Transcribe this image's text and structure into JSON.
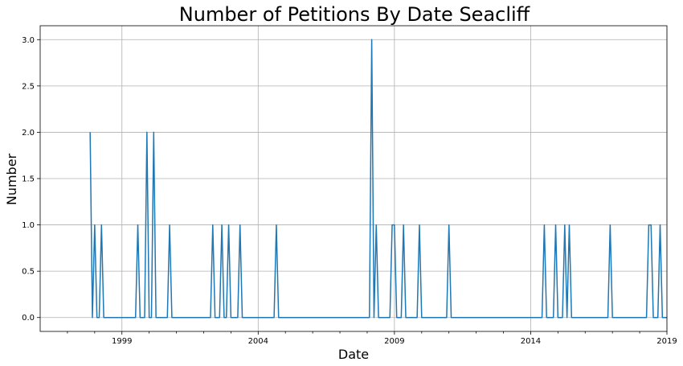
{
  "chart_data": {
    "type": "line",
    "title": "Number of Petitions By Date Seacliff",
    "xlabel": "Date",
    "ylabel": "Number",
    "x_tick_labels": [
      "1999",
      "2004",
      "2009",
      "2014",
      "2019"
    ],
    "y_tick_labels": [
      "0.0",
      "0.5",
      "1.0",
      "1.5",
      "2.0",
      "2.5",
      "3.0"
    ],
    "xlim": [
      "1996-01",
      "2019-01"
    ],
    "ylim": [
      -0.15,
      3.15
    ],
    "grid": true,
    "series": [
      {
        "color": "#1f77b4",
        "x": [
          "1997-11",
          "1997-12",
          "1998-01",
          "1998-02",
          "1998-03",
          "1998-04",
          "1998-05",
          "1998-06",
          "1999-07",
          "1999-08",
          "1999-09",
          "1999-11",
          "1999-12",
          "2000-01",
          "2000-02",
          "2000-03",
          "2000-04",
          "2000-09",
          "2000-10",
          "2000-11",
          "2002-04",
          "2002-05",
          "2002-06",
          "2002-08",
          "2002-09",
          "2002-10",
          "2002-11",
          "2002-12",
          "2003-01",
          "2003-04",
          "2003-05",
          "2003-06",
          "2004-08",
          "2004-09",
          "2004-10",
          "2008-02",
          "2008-03",
          "2008-04",
          "2008-05",
          "2008-06",
          "2008-11",
          "2008-12",
          "2009-01",
          "2009-02",
          "2009-04",
          "2009-05",
          "2009-06",
          "2009-11",
          "2009-12",
          "2010-01",
          "2010-12",
          "2011-01",
          "2011-02",
          "2014-06",
          "2014-07",
          "2014-08",
          "2014-11",
          "2014-12",
          "2015-01",
          "2015-03",
          "2015-04",
          "2015-05",
          "2015-06",
          "2015-07",
          "2015-08",
          "2016-11",
          "2016-12",
          "2017-01",
          "2018-04",
          "2018-05",
          "2018-06",
          "2018-07",
          "2018-09",
          "2018-10",
          "2018-11",
          "2019-01"
        ],
        "values": [
          2,
          0,
          1,
          0,
          0,
          1,
          0,
          0,
          0,
          1,
          0,
          0,
          2,
          0,
          0,
          2,
          0,
          0,
          1,
          0,
          0,
          1,
          0,
          0,
          1,
          0,
          0,
          1,
          0,
          0,
          1,
          0,
          0,
          1,
          0,
          0,
          3,
          0,
          1,
          0,
          0,
          1,
          1,
          0,
          0,
          1,
          0,
          0,
          1,
          0,
          0,
          1,
          0,
          0,
          1,
          0,
          0,
          1,
          0,
          0,
          1,
          0,
          1,
          0,
          0,
          0,
          1,
          0,
          0,
          1,
          1,
          0,
          0,
          1,
          0,
          0
        ]
      }
    ]
  }
}
